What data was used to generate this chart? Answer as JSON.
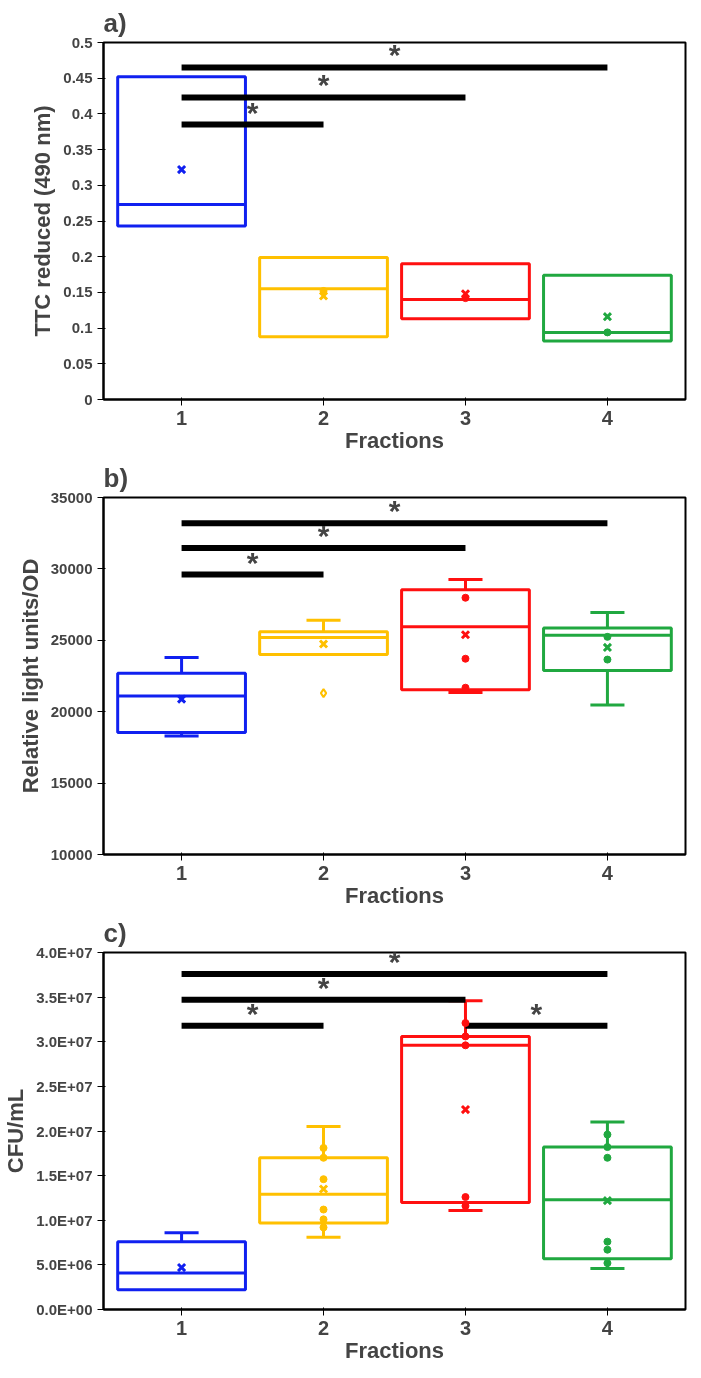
{
  "chart_data": [
    {
      "type": "box",
      "title": "a)",
      "xlabel": "Fractions",
      "ylabel": "TTC reduced (490 nm)",
      "categories": [
        "1",
        "2",
        "3",
        "4"
      ],
      "colors": [
        "#1020f0",
        "#ffc000",
        "#ff1010",
        "#20a840"
      ],
      "boxes": [
        {
          "low": 0.243,
          "q1": 0.243,
          "median": 0.273,
          "q3": 0.452,
          "high": 0.452,
          "mean": 0.322
        },
        {
          "low": 0.088,
          "q1": 0.088,
          "median": 0.155,
          "q3": 0.199,
          "high": 0.199,
          "mean": 0.145
        },
        {
          "low": 0.113,
          "q1": 0.113,
          "median": 0.14,
          "q3": 0.19,
          "high": 0.19,
          "mean": 0.148
        },
        {
          "low": 0.082,
          "q1": 0.082,
          "median": 0.094,
          "q3": 0.174,
          "high": 0.174,
          "mean": 0.116
        }
      ],
      "series": [
        {
          "type": "line",
          "color": "#000000",
          "x": [
            "1",
            "4"
          ],
          "values": [
            0.465,
            0.465
          ]
        },
        {
          "type": "line",
          "color": "#000000",
          "x": [
            "1",
            "3"
          ],
          "values": [
            0.423,
            0.423
          ]
        },
        {
          "type": "line",
          "color": "#000000",
          "x": [
            "1",
            "2"
          ],
          "values": [
            0.385,
            0.385
          ]
        },
        {
          "type": "scatter",
          "marker": "circle",
          "color": "#ffc000",
          "x": [
            "2"
          ],
          "values": [
            0.152
          ]
        },
        {
          "type": "scatter",
          "marker": "circle",
          "color": "#ff1010",
          "x": [
            "3"
          ],
          "values": [
            0.142
          ]
        },
        {
          "type": "scatter",
          "marker": "circle",
          "color": "#20a840",
          "x": [
            "4"
          ],
          "values": [
            0.094
          ]
        }
      ],
      "ylim": [
        0,
        0.5
      ],
      "yticks": [
        0,
        0.05,
        0.1,
        0.15,
        0.2,
        0.25,
        0.3,
        0.35,
        0.4,
        0.45,
        0.5
      ],
      "annotations": [
        {
          "text": "*",
          "y": 0.465
        },
        {
          "text": "*",
          "y": 0.423
        },
        {
          "text": "*",
          "y": 0.385
        }
      ]
    },
    {
      "type": "box",
      "title": "b)",
      "xlabel": "Fractions",
      "ylabel": "Relative light units/OD",
      "categories": [
        "1",
        "2",
        "3",
        "4"
      ],
      "colors": [
        "#1020f0",
        "#ffc000",
        "#ff1010",
        "#20a840"
      ],
      "boxes": [
        {
          "low": 18300,
          "q1": 18550,
          "median": 21100,
          "q3": 22700,
          "high": 23800,
          "mean": 20880
        },
        {
          "low": 24000,
          "q1": 24000,
          "median": 25200,
          "q3": 25600,
          "high": 26400,
          "mean": 24740,
          "outliers": [
            21300
          ]
        },
        {
          "low": 21350,
          "q1": 21530,
          "median": 25950,
          "q3": 28540,
          "high": 29250,
          "mean": 25390
        },
        {
          "low": 20470,
          "q1": 22880,
          "median": 25360,
          "q3": 25860,
          "high": 26950,
          "mean": 24500
        }
      ],
      "series": [
        {
          "type": "line",
          "color": "#000000",
          "x": [
            "1",
            "4"
          ],
          "values": [
            33200,
            33200
          ]
        },
        {
          "type": "line",
          "color": "#000000",
          "x": [
            "1",
            "3"
          ],
          "values": [
            31460,
            31460
          ]
        },
        {
          "type": "line",
          "color": "#000000",
          "x": [
            "1",
            "2"
          ],
          "values": [
            29600,
            29600
          ]
        },
        {
          "type": "scatter",
          "marker": "circle",
          "color": "#ff1010",
          "x": [
            "3",
            "3",
            "3"
          ],
          "values": [
            27980,
            23710,
            21680
          ]
        },
        {
          "type": "scatter",
          "marker": "circle",
          "color": "#20a840",
          "x": [
            "4",
            "4"
          ],
          "values": [
            25240,
            23650
          ]
        }
      ],
      "ylim": [
        10000,
        35000
      ],
      "yticks": [
        10000,
        15000,
        20000,
        25000,
        30000,
        35000
      ],
      "annotations": [
        {
          "text": "*",
          "y": 33200
        },
        {
          "text": "*",
          "y": 31460
        },
        {
          "text": "*",
          "y": 29600
        }
      ]
    },
    {
      "type": "box",
      "title": "c)",
      "xlabel": "Fractions",
      "ylabel": "CFU/mL",
      "categories": [
        "1",
        "2",
        "3",
        "4"
      ],
      "colors": [
        "#1020f0",
        "#ffc000",
        "#ff1010",
        "#20a840"
      ],
      "boxes": [
        {
          "low": 2200000,
          "q1": 2200000,
          "median": 4100000,
          "q3": 7600000,
          "high": 8600000,
          "mean": 4700000
        },
        {
          "low": 8100000,
          "q1": 9700000,
          "median": 12900000,
          "q3": 17000000,
          "high": 20500000,
          "mean": 13500000
        },
        {
          "low": 11100000,
          "q1": 12000000,
          "median": 29600000,
          "q3": 30600000,
          "high": 34600000,
          "mean": 22400000
        },
        {
          "low": 4600000,
          "q1": 5700000,
          "median": 12300000,
          "q3": 18200000,
          "high": 21000000,
          "mean": 12200000
        }
      ],
      "series": [
        {
          "type": "line",
          "color": "#000000",
          "x": [
            "1",
            "4"
          ],
          "values": [
            37600000,
            37600000
          ]
        },
        {
          "type": "line",
          "color": "#000000",
          "x": [
            "1",
            "3"
          ],
          "values": [
            34700000,
            34700000
          ]
        },
        {
          "type": "line",
          "color": "#000000",
          "x": [
            "1",
            "2"
          ],
          "values": [
            31800000,
            31800000
          ]
        },
        {
          "type": "line",
          "color": "#000000",
          "x": [
            "3",
            "4"
          ],
          "values": [
            31800000,
            31800000
          ]
        },
        {
          "type": "scatter",
          "marker": "circle",
          "color": "#ffc000",
          "x": [
            "2",
            "2",
            "2",
            "2",
            "2",
            "2"
          ],
          "values": [
            18100000,
            17000000,
            14600000,
            11200000,
            10100000,
            9200000
          ]
        },
        {
          "type": "scatter",
          "marker": "circle",
          "color": "#ff1010",
          "x": [
            "3",
            "3",
            "3",
            "3",
            "3"
          ],
          "values": [
            32100000,
            30600000,
            29600000,
            12600000,
            11600000
          ]
        },
        {
          "type": "scatter",
          "marker": "circle",
          "color": "#20a840",
          "x": [
            "4",
            "4",
            "4",
            "4",
            "4",
            "4"
          ],
          "values": [
            19600000,
            18200000,
            17000000,
            7600000,
            6700000,
            5200000
          ]
        }
      ],
      "ylim": [
        0,
        40000000
      ],
      "yticks": [
        {
          "value": 0,
          "label": "0.0E+00"
        },
        {
          "value": 5000000,
          "label": "5.0E+06"
        },
        {
          "value": 10000000,
          "label": "1.0E+07"
        },
        {
          "value": 15000000,
          "label": "1.5E+07"
        },
        {
          "value": 20000000,
          "label": "2.0E+07"
        },
        {
          "value": 25000000,
          "label": "2.5E+07"
        },
        {
          "value": 30000000,
          "label": "3.0E+07"
        },
        {
          "value": 35000000,
          "label": "3.5E+07"
        },
        {
          "value": 40000000,
          "label": "4.0E+07"
        }
      ],
      "annotations": [
        {
          "text": "*",
          "y": 37600000
        },
        {
          "text": "*",
          "y": 34700000
        },
        {
          "text": "*",
          "y": 31800000
        },
        {
          "text": "*",
          "y": 31800000
        }
      ]
    }
  ]
}
